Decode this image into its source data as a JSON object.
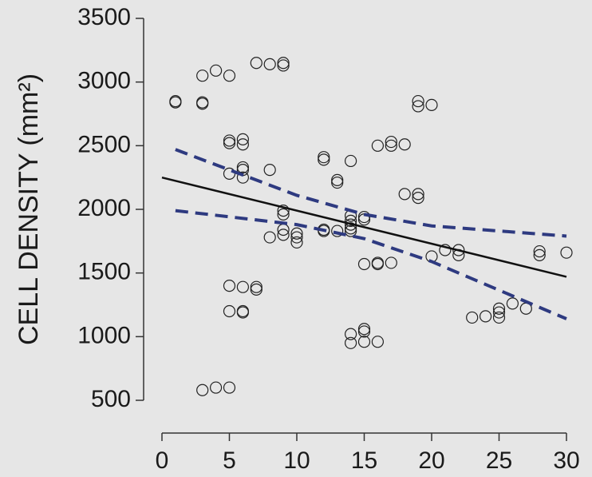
{
  "chart_data": {
    "type": "scatter",
    "y_label": "CELL DENSITY (mm²)",
    "x": [
      1,
      1,
      3,
      3,
      3,
      4,
      5,
      3,
      4,
      5,
      5,
      5,
      5,
      6,
      6,
      6,
      6,
      6,
      5,
      6,
      5,
      6,
      6,
      7,
      7,
      7,
      8,
      9,
      9,
      8,
      8,
      9,
      9,
      9,
      9,
      10,
      10,
      10,
      12,
      12,
      12,
      12,
      13,
      13,
      13,
      14,
      14,
      14,
      14,
      14,
      14,
      15,
      15,
      15,
      14,
      14,
      15,
      15,
      15,
      16,
      16,
      16,
      16,
      17,
      17,
      17,
      18,
      18,
      19,
      19,
      19,
      19,
      20,
      20,
      21,
      22,
      22,
      23,
      24,
      25,
      25,
      25,
      26,
      27,
      28,
      28,
      30
    ],
    "values": [
      2850,
      2840,
      3050,
      2840,
      2830,
      3090,
      3050,
      580,
      600,
      600,
      2540,
      2520,
      2280,
      2550,
      2510,
      2330,
      2310,
      2250,
      1400,
      1390,
      1200,
      1200,
      1190,
      1390,
      1370,
      3150,
      3140,
      3150,
      3130,
      2310,
      1780,
      1990,
      1960,
      1840,
      1800,
      1810,
      1780,
      1740,
      2410,
      2390,
      1840,
      1830,
      2230,
      2210,
      1830,
      2380,
      1950,
      1910,
      1880,
      1850,
      1830,
      1940,
      1920,
      1570,
      1020,
      950,
      1060,
      1040,
      960,
      960,
      1580,
      1570,
      2500,
      2530,
      2500,
      1580,
      2510,
      2120,
      2850,
      2810,
      2120,
      2090,
      2820,
      1630,
      1680,
      1680,
      1640,
      1150,
      1160,
      1220,
      1190,
      1150,
      1260,
      1220,
      1670,
      1640,
      1660
    ],
    "marker_color": "#222222",
    "lines": [
      {
        "x": [
          0,
          30
        ],
        "values": [
          2250,
          1470
        ],
        "color": "#111111",
        "style": "solid"
      },
      {
        "x": [
          1,
          10,
          15,
          20,
          30
        ],
        "values": [
          2470,
          2110,
          1960,
          1870,
          1790
        ],
        "color": "#2e3a80",
        "style": "dashed"
      },
      {
        "x": [
          1,
          10,
          15,
          20,
          30
        ],
        "values": [
          1990,
          1880,
          1770,
          1590,
          1140
        ],
        "color": "#2e3a80",
        "style": "dashed"
      }
    ],
    "xlim": [
      0,
      30
    ],
    "xticks": [
      0,
      5,
      10,
      15,
      20,
      25,
      30
    ],
    "ylim": [
      500,
      3500
    ],
    "yticks": [
      500,
      1000,
      1500,
      2000,
      2500,
      3000,
      3500
    ]
  }
}
